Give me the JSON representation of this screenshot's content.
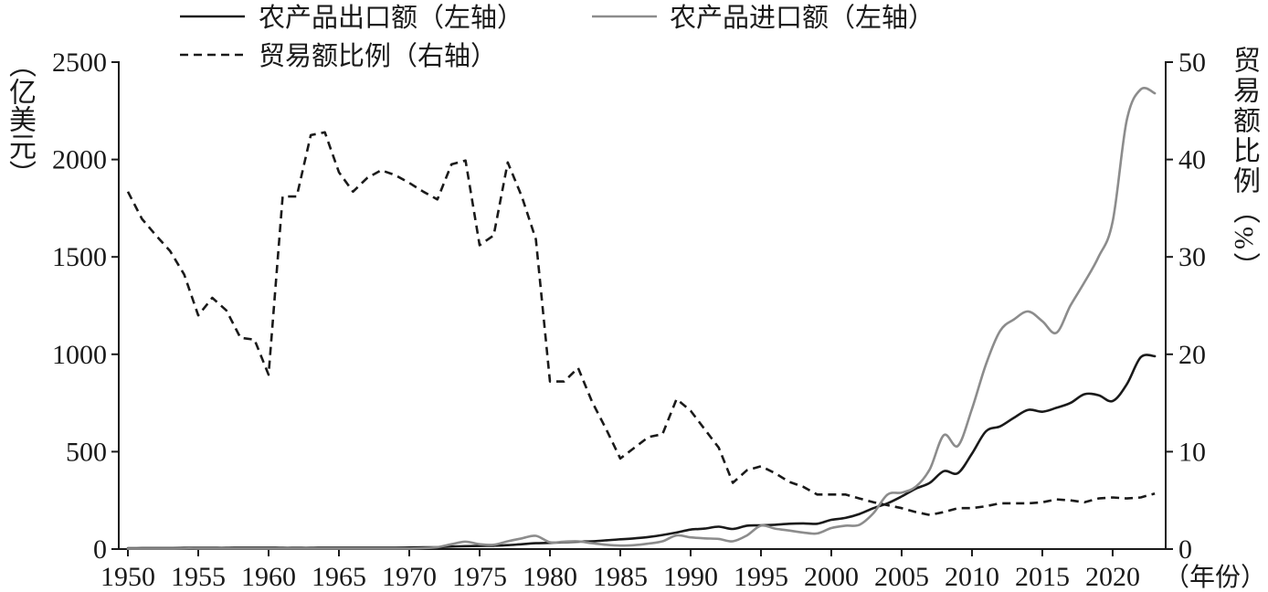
{
  "chart_data": {
    "type": "line",
    "x": [
      1950,
      1951,
      1952,
      1953,
      1954,
      1955,
      1956,
      1957,
      1958,
      1959,
      1960,
      1961,
      1962,
      1963,
      1964,
      1965,
      1966,
      1967,
      1968,
      1969,
      1970,
      1971,
      1972,
      1973,
      1974,
      1975,
      1976,
      1977,
      1978,
      1979,
      1980,
      1981,
      1982,
      1983,
      1984,
      1985,
      1986,
      1987,
      1988,
      1989,
      1990,
      1991,
      1992,
      1993,
      1994,
      1995,
      1996,
      1997,
      1998,
      1999,
      2000,
      2001,
      2002,
      2003,
      2004,
      2005,
      2006,
      2007,
      2008,
      2009,
      2010,
      2011,
      2012,
      2013,
      2014,
      2015,
      2016,
      2017,
      2018,
      2019,
      2020,
      2021,
      2022,
      2023
    ],
    "xlim": [
      1949.35,
      2023.77
    ],
    "xticks": [
      1950,
      1955,
      1960,
      1965,
      1970,
      1975,
      1980,
      1985,
      1990,
      1995,
      2000,
      2005,
      2010,
      2015,
      2020
    ],
    "xlabel": "（年份）",
    "y_left": {
      "label": "（亿美元）",
      "lim": [
        0,
        2500
      ],
      "ticks": [
        0,
        500,
        1000,
        1500,
        2000,
        2500
      ]
    },
    "y_right": {
      "label": "贸易额比例（%）",
      "lim": [
        0,
        50
      ],
      "ticks": [
        0,
        10,
        20,
        30,
        40,
        50
      ]
    },
    "grid": false,
    "legend": "top-left",
    "series": [
      {
        "name": "农产品出口额（左轴）",
        "axis": "left",
        "color": "#1a1a1a",
        "style": "solid",
        "values": [
          4,
          5,
          5,
          5,
          6,
          6,
          6,
          6,
          7,
          7,
          7,
          6,
          6,
          6,
          7,
          7,
          7,
          7,
          7,
          7,
          8,
          9,
          10,
          13,
          15,
          16,
          17,
          20,
          25,
          30,
          32,
          35,
          38,
          40,
          45,
          50,
          55,
          62,
          72,
          85,
          100,
          105,
          115,
          103,
          120,
          122,
          125,
          130,
          132,
          130,
          150,
          160,
          180,
          210,
          235,
          270,
          310,
          340,
          400,
          390,
          490,
          605,
          630,
          675,
          715,
          705,
          725,
          750,
          795,
          790,
          760,
          845,
          985,
          990
        ]
      },
      {
        "name": "农产品进口额（左轴）",
        "axis": "left",
        "color": "#8c8c8c",
        "style": "solid",
        "values": [
          2,
          2,
          2,
          2,
          3,
          3,
          3,
          3,
          3,
          3,
          3,
          3,
          3,
          3,
          3,
          3,
          3,
          3,
          3,
          3,
          3,
          5,
          10,
          25,
          38,
          25,
          22,
          40,
          55,
          68,
          35,
          38,
          40,
          30,
          22,
          18,
          20,
          28,
          40,
          70,
          60,
          55,
          52,
          40,
          70,
          120,
          105,
          95,
          85,
          80,
          108,
          120,
          125,
          185,
          280,
          290,
          320,
          410,
          585,
          530,
          720,
          950,
          1120,
          1180,
          1220,
          1170,
          1110,
          1250,
          1370,
          1500,
          1680,
          2200,
          2360,
          2340
        ]
      },
      {
        "name": "贸易额比例（右轴）",
        "axis": "right",
        "color": "#1a1a1a",
        "style": "dashed",
        "values": [
          36.7,
          33.9,
          32.2,
          30.6,
          28.2,
          24.0,
          25.8,
          24.5,
          21.7,
          21.5,
          17.9,
          36.2,
          36.2,
          42.5,
          42.8,
          38.7,
          36.7,
          38.1,
          38.9,
          38.4,
          37.6,
          36.7,
          35.9,
          39.5,
          39.9,
          31.2,
          32.2,
          39.7,
          36.2,
          31.8,
          17.2,
          17.2,
          18.6,
          15.1,
          12.3,
          9.3,
          10.4,
          11.5,
          11.8,
          15.4,
          14.2,
          12.3,
          10.4,
          6.8,
          8.1,
          8.5,
          7.8,
          6.9,
          6.4,
          5.6,
          5.6,
          5.6,
          5.2,
          4.8,
          4.5,
          4.2,
          3.8,
          3.5,
          3.8,
          4.2,
          4.2,
          4.4,
          4.7,
          4.7,
          4.7,
          4.8,
          5.1,
          5.0,
          4.8,
          5.2,
          5.3,
          5.2,
          5.3,
          5.7
        ]
      }
    ]
  }
}
